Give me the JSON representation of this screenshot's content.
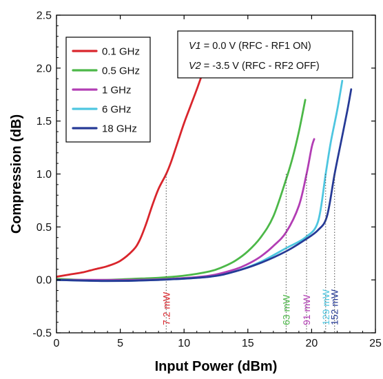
{
  "chart_data": {
    "type": "line",
    "title": "",
    "xlabel": "Input Power (dBm)",
    "ylabel": "Compression (dB)",
    "xlim": [
      0,
      25
    ],
    "ylim": [
      -0.5,
      2.5
    ],
    "x_ticks": [
      "0",
      "5",
      "10",
      "15",
      "20",
      "25"
    ],
    "y_ticks": [
      "-0.5",
      "0.0",
      "0.5",
      "1.0",
      "1.5",
      "2.0",
      "2.5"
    ],
    "x_tick_values": [
      0,
      5,
      10,
      15,
      20,
      25
    ],
    "y_tick_values": [
      -0.5,
      0.0,
      0.5,
      1.0,
      1.5,
      2.0,
      2.5
    ],
    "grid": false,
    "legend_position": "top-left",
    "annotation": {
      "line1": {
        "var": "V1",
        "text": " = 0.0 V (RFC - RF1 ON)"
      },
      "line2": {
        "var": "V2",
        "text": " = -3.5 V (RFC - RF2 OFF)"
      }
    },
    "series": [
      {
        "name": "0.1 GHz",
        "color": "#d9252c",
        "points": [
          [
            0,
            0.03
          ],
          [
            1,
            0.05
          ],
          [
            2,
            0.07
          ],
          [
            3,
            0.1
          ],
          [
            4,
            0.13
          ],
          [
            5,
            0.18
          ],
          [
            6,
            0.28
          ],
          [
            6.5,
            0.37
          ],
          [
            7,
            0.52
          ],
          [
            7.5,
            0.7
          ],
          [
            8,
            0.86
          ],
          [
            8.6,
            1.0
          ],
          [
            9,
            1.12
          ],
          [
            9.5,
            1.3
          ],
          [
            10,
            1.48
          ],
          [
            10.5,
            1.64
          ],
          [
            11,
            1.8
          ],
          [
            11.5,
            1.97
          ],
          [
            11.7,
            2.04
          ]
        ],
        "p1db_x": 8.6,
        "p1db_label": "7.2 mW"
      },
      {
        "name": "0.5 GHz",
        "color": "#4cb848",
        "points": [
          [
            0,
            0.01
          ],
          [
            2,
            0.0
          ],
          [
            4,
            0.0
          ],
          [
            6,
            0.01
          ],
          [
            8,
            0.02
          ],
          [
            10,
            0.04
          ],
          [
            12,
            0.08
          ],
          [
            13,
            0.12
          ],
          [
            14,
            0.18
          ],
          [
            15,
            0.27
          ],
          [
            16,
            0.4
          ],
          [
            17,
            0.6
          ],
          [
            18,
            0.95
          ],
          [
            18.5,
            1.15
          ],
          [
            19,
            1.4
          ],
          [
            19.5,
            1.7
          ]
        ],
        "p1db_x": 18.0,
        "p1db_label": "63 mW"
      },
      {
        "name": "1 GHz",
        "color": "#b23db4",
        "points": [
          [
            0,
            0.0
          ],
          [
            3,
            0.0
          ],
          [
            6,
            0.0
          ],
          [
            9,
            0.01
          ],
          [
            12,
            0.04
          ],
          [
            14,
            0.1
          ],
          [
            15,
            0.15
          ],
          [
            16,
            0.22
          ],
          [
            17,
            0.32
          ],
          [
            18,
            0.45
          ],
          [
            19,
            0.7
          ],
          [
            19.6,
            1.0
          ],
          [
            20,
            1.25
          ],
          [
            20.2,
            1.33
          ]
        ],
        "p1db_x": 19.6,
        "p1db_label": "91 mW"
      },
      {
        "name": "6 GHz",
        "color": "#4ec6e0",
        "points": [
          [
            0,
            0.0
          ],
          [
            4,
            -0.01
          ],
          [
            8,
            0.0
          ],
          [
            12,
            0.03
          ],
          [
            14,
            0.08
          ],
          [
            16,
            0.17
          ],
          [
            18,
            0.3
          ],
          [
            19.5,
            0.4
          ],
          [
            20.5,
            0.55
          ],
          [
            21.1,
            1.0
          ],
          [
            21.5,
            1.3
          ],
          [
            22,
            1.6
          ],
          [
            22.4,
            1.88
          ]
        ],
        "p1db_x": 21.1,
        "p1db_label": "129 mW"
      },
      {
        "name": "18 GHz",
        "color": "#263a96",
        "points": [
          [
            0,
            0.0
          ],
          [
            4,
            -0.01
          ],
          [
            8,
            0.0
          ],
          [
            12,
            0.03
          ],
          [
            14,
            0.08
          ],
          [
            16,
            0.16
          ],
          [
            18,
            0.27
          ],
          [
            19.5,
            0.38
          ],
          [
            20.5,
            0.47
          ],
          [
            21.2,
            0.6
          ],
          [
            21.8,
            1.0
          ],
          [
            22.3,
            1.3
          ],
          [
            22.8,
            1.6
          ],
          [
            23.1,
            1.8
          ]
        ],
        "p1db_x": 21.8,
        "p1db_label": "152 mW"
      }
    ]
  }
}
